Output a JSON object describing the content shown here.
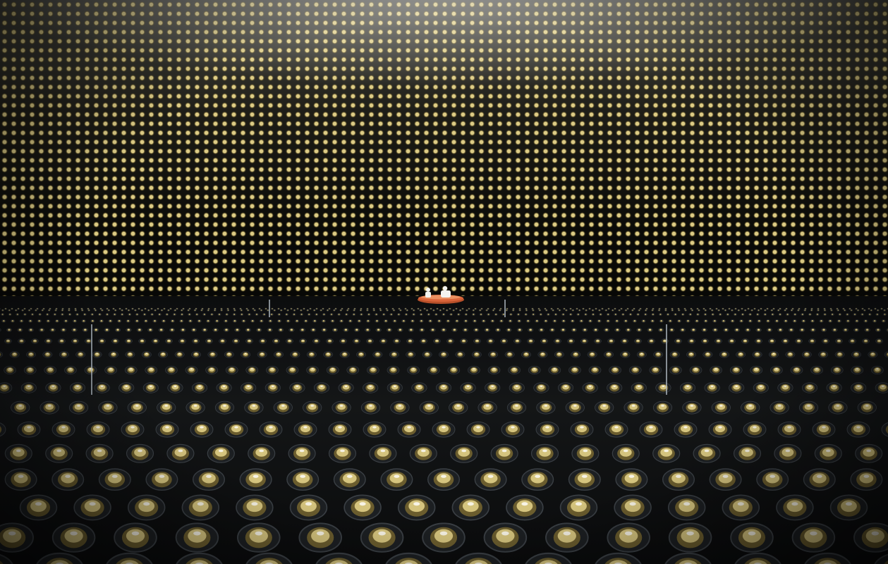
{
  "scene": {
    "description_label": "",
    "colors": {
      "pmt_gold": "#e8d68c",
      "pmt_shadow": "#6b5d2e",
      "water": "#121416",
      "boat": "#d9643a",
      "boat_rim": "#f2a272",
      "person": "#f4f4f0"
    }
  }
}
